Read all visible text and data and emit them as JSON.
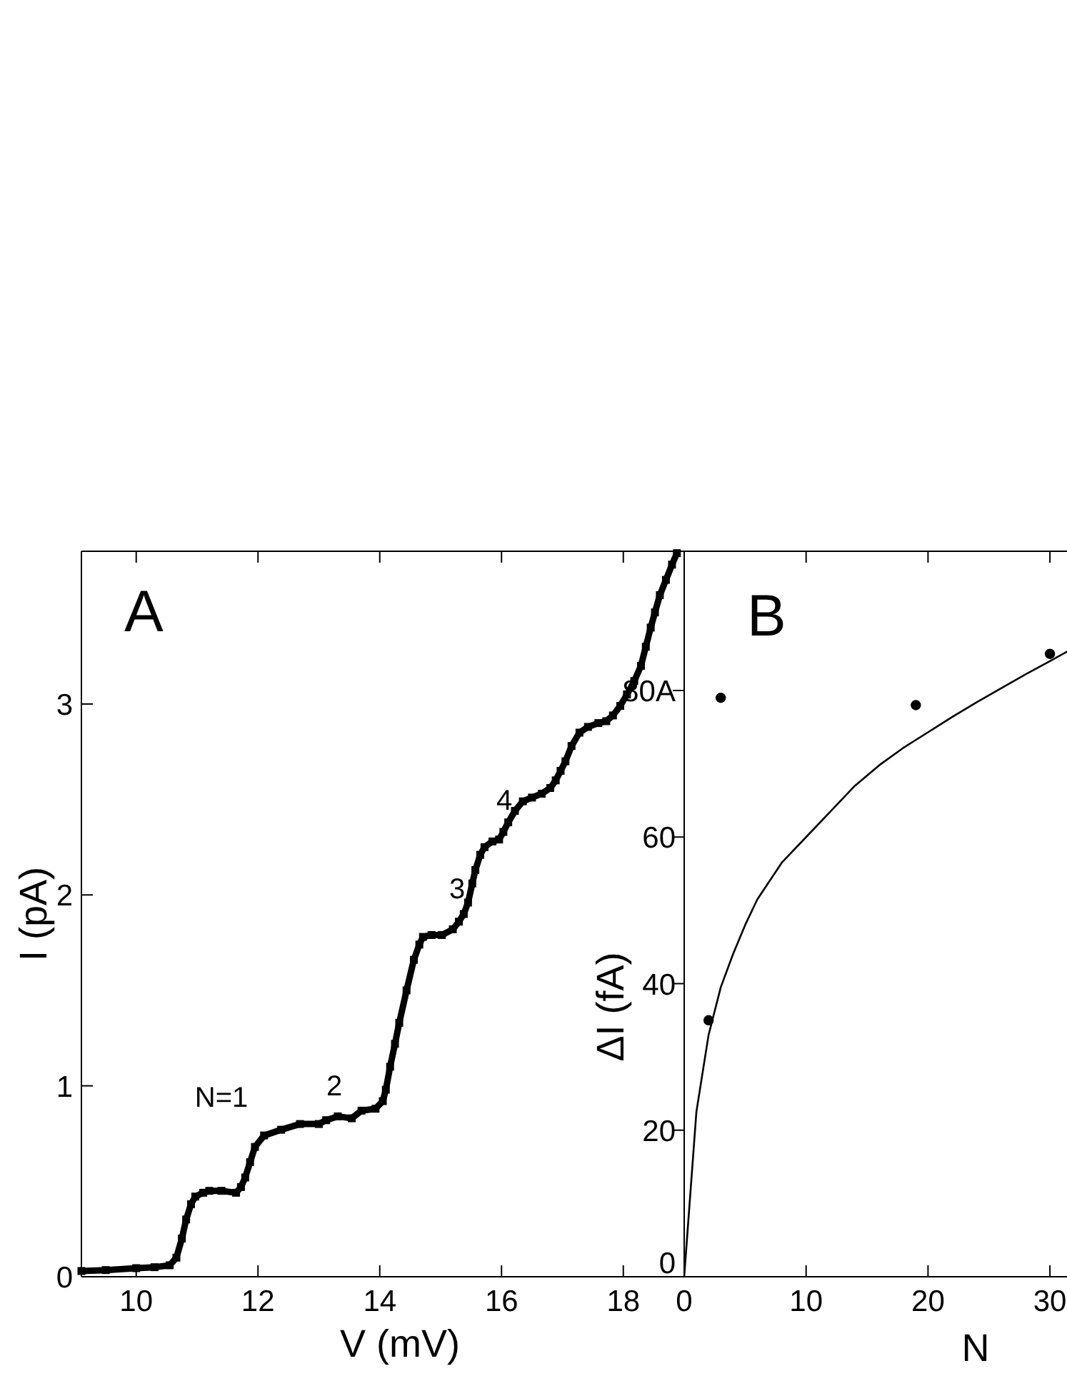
{
  "chart_data": [
    {
      "type": "line",
      "title": "A",
      "xlabel": "V (mV)",
      "ylabel": "I (pA)",
      "color": "#000000",
      "marker": "square",
      "x": [
        9.1,
        9.5,
        10.0,
        10.3,
        10.55,
        10.66,
        10.75,
        10.82,
        10.9,
        10.97,
        11.1,
        11.2,
        11.4,
        11.64,
        11.72,
        11.79,
        11.87,
        11.95,
        12.1,
        12.38,
        12.69,
        13.0,
        13.12,
        13.31,
        13.54,
        13.7,
        13.93,
        14.05,
        14.1,
        14.17,
        14.25,
        14.32,
        14.44,
        14.56,
        14.65,
        14.71,
        14.85,
        15.02,
        15.2,
        15.3,
        15.38,
        15.45,
        15.52,
        15.57,
        15.65,
        15.72,
        15.85,
        15.96,
        16.03,
        16.11,
        16.22,
        16.35,
        16.5,
        16.66,
        16.8,
        16.89,
        16.97,
        17.05,
        17.15,
        17.28,
        17.42,
        17.59,
        17.72,
        17.83,
        17.95,
        18.06,
        18.18,
        18.29,
        18.37,
        18.45,
        18.52,
        18.6,
        18.7,
        18.8,
        18.88
      ],
      "values": [
        0.03,
        0.035,
        0.045,
        0.05,
        0.06,
        0.1,
        0.2,
        0.3,
        0.38,
        0.42,
        0.44,
        0.45,
        0.45,
        0.44,
        0.47,
        0.52,
        0.6,
        0.68,
        0.74,
        0.77,
        0.8,
        0.8,
        0.82,
        0.84,
        0.83,
        0.87,
        0.88,
        0.92,
        0.98,
        1.1,
        1.22,
        1.33,
        1.5,
        1.66,
        1.74,
        1.78,
        1.79,
        1.79,
        1.82,
        1.86,
        1.9,
        1.96,
        2.06,
        2.13,
        2.21,
        2.25,
        2.28,
        2.29,
        2.33,
        2.38,
        2.44,
        2.49,
        2.51,
        2.53,
        2.56,
        2.6,
        2.65,
        2.7,
        2.78,
        2.85,
        2.88,
        2.9,
        2.91,
        2.94,
        2.99,
        3.05,
        3.12,
        3.2,
        3.3,
        3.4,
        3.48,
        3.57,
        3.65,
        3.73,
        3.79
      ],
      "xlim": [
        9.1,
        19
      ],
      "ylim": [
        0,
        3.8
      ],
      "xticks": [
        10,
        12,
        14,
        16,
        18
      ],
      "yticks": [
        0,
        1,
        2,
        3
      ],
      "annotations": [
        "N=1",
        "2",
        "3",
        "4"
      ]
    },
    {
      "type": "scatter",
      "title": "B",
      "xlabel": "N",
      "ylabel": "ΔI (fA)",
      "xlim": [
        0,
        31.4
      ],
      "ylim": [
        0,
        99
      ],
      "xticks": [
        0,
        10,
        20,
        30
      ],
      "yticks": [
        0,
        20,
        40,
        60,
        {
          "value": 80,
          "label": "80A"
        }
      ],
      "series": [
        {
          "color": "#000000",
          "marker": "circle",
          "x": [
            2,
            3,
            19,
            30
          ],
          "values": [
            35,
            79,
            78,
            85
          ]
        },
        {
          "type": "line",
          "color": "#000000",
          "x": [
            0,
            1,
            2,
            3,
            4,
            5,
            6,
            8,
            10,
            12,
            14,
            16,
            18,
            20,
            22,
            24,
            26,
            28,
            30,
            31.4
          ],
          "values": [
            0,
            22.5,
            33,
            39.5,
            44,
            48,
            51.5,
            56.5,
            60,
            63.5,
            67,
            69.8,
            72.2,
            74.3,
            76.4,
            78.4,
            80.3,
            82.2,
            84,
            85.3
          ]
        }
      ]
    }
  ]
}
